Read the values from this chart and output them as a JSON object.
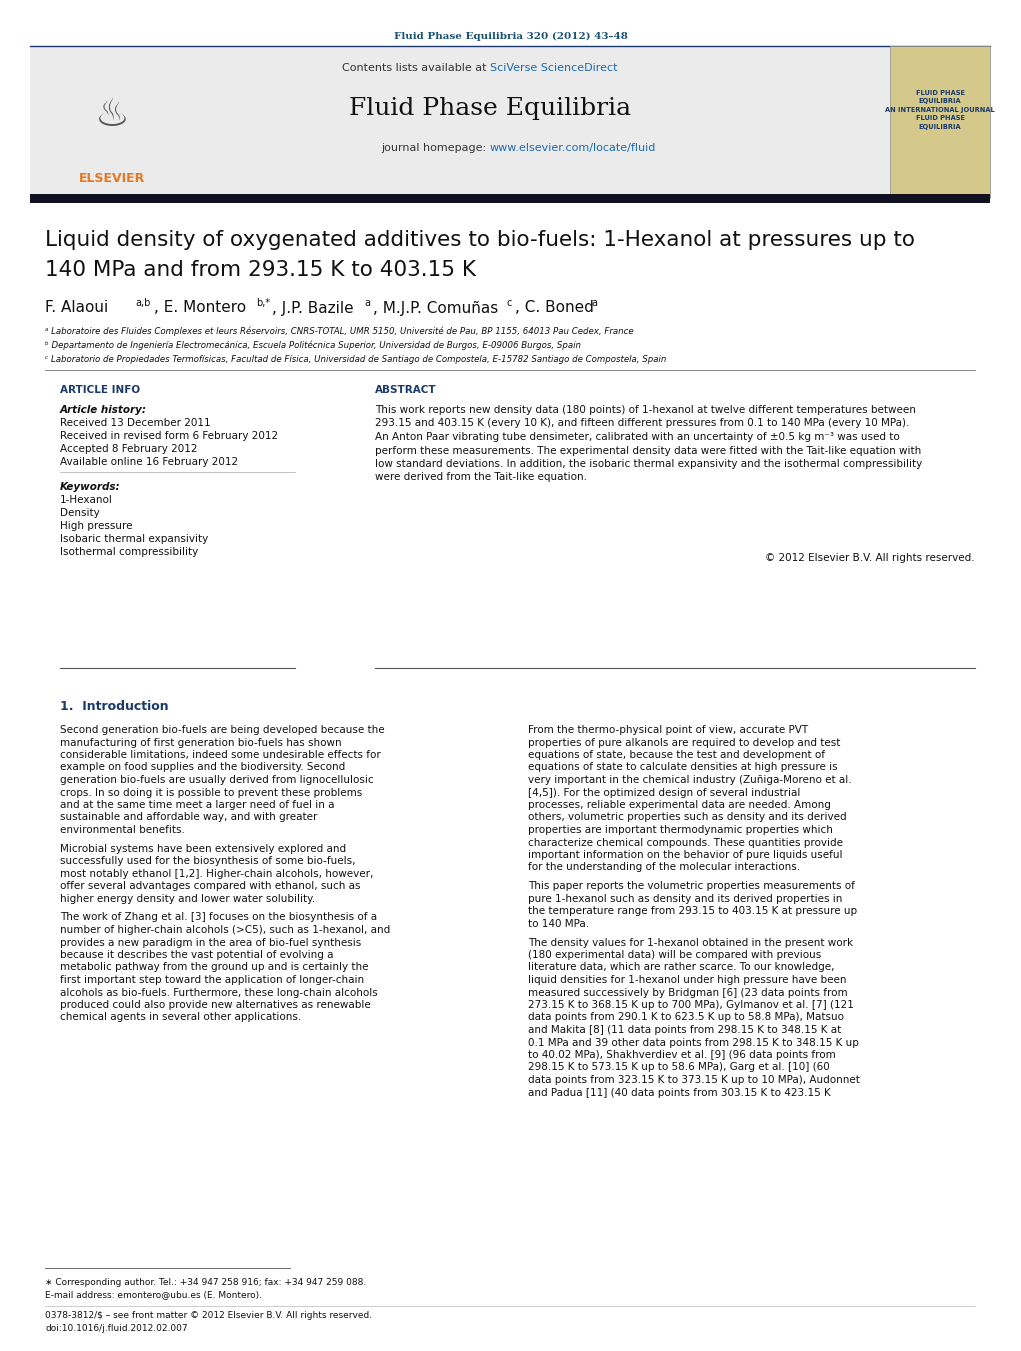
{
  "page_width": 10.21,
  "page_height": 13.51,
  "dpi": 100,
  "bg_color": "#ffffff",
  "journal_ref": "Fluid Phase Equilibria 320 (2012) 43–48",
  "journal_ref_color": "#1a5276",
  "journal_name": "Fluid Phase Equilibria",
  "journal_homepage_url": "www.elsevier.com/locate/fluid",
  "title_line1": "Liquid density of oxygenated additives to bio-fuels: 1-Hexanol at pressures up to",
  "title_line2": "140 MPa and from 293.15 K to 403.15 K",
  "affil_a": "ᵃ Laboratoire des Fluides Complexes et leurs Réservoirs, CNRS-TOTAL, UMR 5150, Université de Pau, BP 1155, 64013 Pau Cedex, France",
  "affil_b": "ᵇ Departamento de Ingeniería Electromecánica, Escuela Politécnica Superior, Universidad de Burgos, E-09006 Burgos, Spain",
  "affil_c": "ᶜ Laboratorio de Propiedades Termofísicas, Facultad de Física, Universidad de Santiago de Compostela, E-15782 Santiago de Compostela, Spain",
  "article_info_header": "ARTICLE INFO",
  "abstract_header": "ABSTRACT",
  "article_history_label": "Article history:",
  "received": "Received 13 December 2011",
  "received_revised": "Received in revised form 6 February 2012",
  "accepted": "Accepted 8 February 2012",
  "available": "Available online 16 February 2012",
  "keywords_label": "Keywords:",
  "keywords": [
    "1-Hexanol",
    "Density",
    "High pressure",
    "Isobaric thermal expansivity",
    "Isothermal compressibility"
  ],
  "abstract_text": "This work reports new density data (180 points) of 1-hexanol at twelve different temperatures between\n293.15 and 403.15 K (every 10 K), and fifteen different pressures from 0.1 to 140 MPa (every 10 MPa).\nAn Anton Paar vibrating tube densimeter, calibrated with an uncertainty of ±0.5 kg m⁻³ was used to\nperform these measurements. The experimental density data were fitted with the Tait-like equation with\nlow standard deviations. In addition, the isobaric thermal expansivity and the isothermal compressibility\nwere derived from the Tait-like equation.",
  "copyright": "© 2012 Elsevier B.V. All rights reserved.",
  "section1_header": "1.  Introduction",
  "intro_col1": "Second generation bio-fuels are being developed because the manufacturing of first generation bio-fuels has shown considerable limitations, indeed some undesirable effects for example on food supplies and the biodiversity. Second generation bio-fuels are usually derived from lignocellulosic crops. In so doing it is possible to prevent these problems and at the same time meet a larger need of fuel in a sustainable and affordable way, and with greater environmental benefits.\n\n    Microbial systems have been extensively explored and successfully used for the biosynthesis of some bio-fuels, most notably ethanol [1,2]. Higher-chain alcohols, however, offer several advantages compared with ethanol, such as higher energy density and lower water solubility.\n\n    The work of Zhang et al. [3] focuses on the biosynthesis of a number of higher-chain alcohols (>C5), such as 1-hexanol, and provides a new paradigm in the area of bio-fuel synthesis because it describes the vast potential of evolving a metabolic pathway from the ground up and is certainly the first important step toward the application of longer-chain alcohols as bio-fuels. Furthermore, these long-chain alcohols produced could also provide new alternatives as renewable chemical agents in several other applications.",
  "intro_col2": "From the thermo-physical point of view, accurate PVT properties of pure alkanols are required to develop and test equations of state, because the test and development of equations of state to calculate densities at high pressure is very important in the chemical industry (Zuñiga-Moreno et al. [4,5]). For the optimized design of several industrial processes, reliable experimental data are needed. Among others, volumetric properties such as density and its derived properties are important thermodynamic properties which characterize chemical compounds. These quantities provide important information on the behavior of pure liquids useful for the understanding of the molecular interactions.\n\n    This paper reports the volumetric properties measurements of pure 1-hexanol such as density and its derived properties in the temperature range from 293.15 to 403.15 K at pressure up to 140 MPa.\n\n    The density values for 1-hexanol obtained in the present work (180 experimental data) will be compared with previous literature data, which are rather scarce. To our knowledge, liquid densities for 1-hexanol under high pressure have been measured successively by Bridgman [6] (23 data points from 273.15 K to 368.15 K up to 700 MPa), Gylmanov et al. [7] (121 data points from 290.1 K to 623.5 K up to 58.8 MPa), Matsuo and Makita [8] (11 data points from 298.15 K to 348.15 K at 0.1 MPa and 39 other data points from 298.15 K to 348.15 K up to 40.02 MPa), Shakhverdiev et al. [9] (96 data points from 298.15 K to 573.15 K up to 58.6 MPa), Garg et al. [10] (60 data points from 323.15 K to 373.15 K up to 10 MPa), Audonnet and Padua [11] (40 data points from 303.15 K to 423.15 K",
  "footnote_star": "∗ Corresponding author. Tel.: +34 947 258 916; fax: +34 947 259 088.",
  "footnote_email": "E-mail address: emontero@ubu.es (E. Montero).",
  "footnote_copyright": "0378-3812/$ – see front matter © 2012 Elsevier B.V. All rights reserved.",
  "footnote_doi": "doi:10.1016/j.fluid.2012.02.007",
  "elsevier_color": "#e87722",
  "link_color": "#1a6ab5",
  "dark_blue": "#1a3a6b",
  "text_color": "#000000",
  "section_header_color": "#1a3a6b"
}
